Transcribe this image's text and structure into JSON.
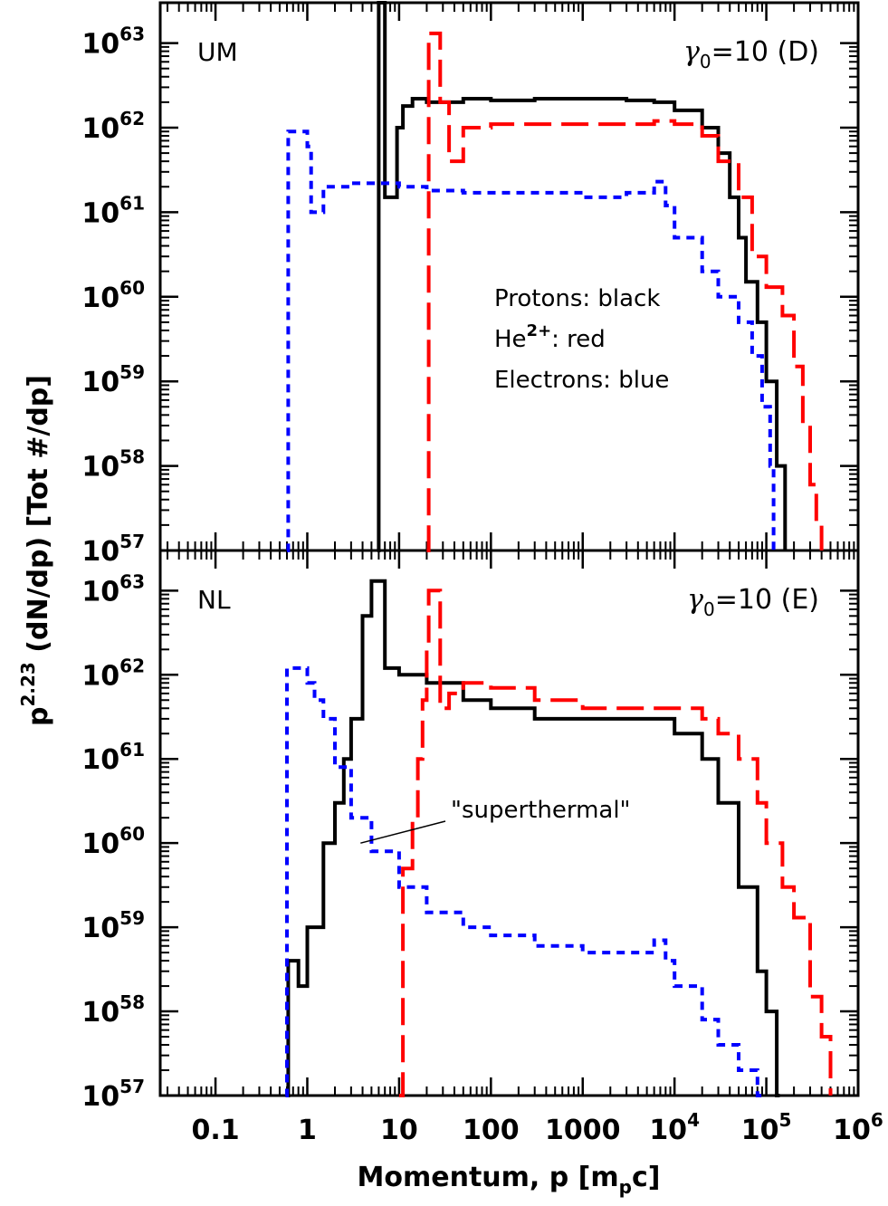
{
  "chart_data": [
    {
      "type": "line",
      "panel_label": "UM",
      "title": "γ0=10 (D)",
      "xlabel": "Momentum, p [mpc]",
      "ylabel": "p2.23 (dN/dp) [Tot #/dp]",
      "xscale": "log",
      "yscale": "log",
      "xlim": [
        0.025,
        1000000
      ],
      "ylim": [
        1e+57,
        3e+63
      ],
      "x_tick_labels": [
        "0.1",
        "1",
        "10",
        "100",
        "1000",
        "10^4",
        "10^5",
        "10^6"
      ],
      "y_tick_labels": [
        "10^57",
        "10^58",
        "10^59",
        "10^60",
        "10^61",
        "10^62",
        "10^63"
      ],
      "legend": [
        "Protons: black",
        "He2+: red",
        "Electrons: blue"
      ],
      "series": [
        {
          "name": "Protons",
          "color": "#000000",
          "style": "solid",
          "x": [
            5.8,
            6.0,
            6.5,
            7.0,
            8.0,
            9.5,
            11,
            14,
            20,
            30,
            50,
            100,
            300,
            1000,
            3000,
            6000,
            10000,
            20000,
            30000,
            40000,
            50000,
            60000,
            80000,
            100000,
            130000,
            160000
          ],
          "y": [
            1e+57,
            3e+63,
            3e+63,
            1.5e+61,
            1.5e+61,
            1e+62,
            1.8e+62,
            2.2e+62,
            2e+62,
            2e+62,
            2.2e+62,
            2.1e+62,
            2.2e+62,
            2.2e+62,
            2.1e+62,
            2e+62,
            1.6e+62,
            1e+62,
            5e+61,
            1.5e+61,
            5e+60,
            1.5e+60,
            5e+59,
            1e+59,
            1e+58,
            1e+57
          ]
        },
        {
          "name": "He2+",
          "color": "#ff0000",
          "style": "dashed",
          "x": [
            20,
            21,
            24,
            28,
            35,
            50,
            100,
            300,
            1000,
            3000,
            6000,
            10000,
            20000,
            30000,
            50000,
            70000,
            100000,
            150000,
            200000,
            250000,
            300000,
            350000,
            400000
          ],
          "y": [
            1e+57,
            1.3e+63,
            1.3e+63,
            2e+62,
            4e+61,
            1e+62,
            1.1e+62,
            1.1e+62,
            1.1e+62,
            1.1e+62,
            1.2e+62,
            1.1e+62,
            8e+61,
            4e+61,
            1.5e+61,
            3e+60,
            1.3e+60,
            6e+59,
            1.5e+59,
            3e+58,
            6e+57,
            2e+57,
            1e+57
          ]
        },
        {
          "name": "Electrons",
          "color": "#0000ff",
          "style": "dotted",
          "x": [
            0.6,
            0.62,
            0.8,
            1.0,
            1.1,
            1.3,
            1.5,
            2,
            3,
            5,
            10,
            20,
            50,
            100,
            300,
            1000,
            3000,
            6000,
            8000,
            10000,
            20000,
            30000,
            50000,
            70000,
            90000,
            110000,
            120000
          ],
          "y": [
            1e+57,
            9e+61,
            9e+61,
            6e+61,
            1e+61,
            1e+61,
            2e+61,
            2e+61,
            2.2e+61,
            2.2e+61,
            2e+61,
            1.8e+61,
            1.7e+61,
            1.7e+61,
            1.7e+61,
            1.5e+61,
            1.7e+61,
            2.3e+61,
            1.2e+61,
            5e+60,
            2e+60,
            1e+60,
            5e+59,
            2e+59,
            5e+58,
            1e+58,
            1e+57
          ]
        }
      ]
    },
    {
      "type": "line",
      "panel_label": "NL",
      "title": "γ0=10 (E)",
      "xlabel": "Momentum, p [mpc]",
      "ylabel": "p2.23 (dN/dp) [Tot #/dp]",
      "xscale": "log",
      "yscale": "log",
      "xlim": [
        0.025,
        1000000
      ],
      "ylim": [
        1e+57,
        3e+63
      ],
      "annotation": {
        "text": "\"superthermal\"",
        "points_to": {
          "x": 3.8,
          "y": 1e+60
        },
        "label_at": {
          "x": 30,
          "y": 3e+60
        }
      },
      "series": [
        {
          "name": "Protons",
          "color": "#000000",
          "style": "solid",
          "x": [
            0.6,
            0.62,
            0.7,
            0.8,
            1.0,
            1.2,
            1.5,
            2,
            2.5,
            3,
            4,
            5,
            6,
            7,
            10,
            20,
            50,
            100,
            300,
            1000,
            3000,
            10000,
            20000,
            30000,
            50000,
            80000,
            100000,
            130000,
            140000
          ],
          "y": [
            1e+57,
            4e+58,
            4e+58,
            2e+58,
            1e+59,
            1e+59,
            1e+60,
            3e+60,
            1e+61,
            3e+61,
            5e+62,
            1.3e+63,
            1.3e+63,
            1.2e+62,
            1e+62,
            8e+61,
            5e+61,
            4e+61,
            3e+61,
            3e+61,
            3e+61,
            2e+61,
            1e+61,
            3e+60,
            3e+59,
            3e+58,
            1e+58,
            1e+57,
            1e+57
          ]
        },
        {
          "name": "He2+",
          "color": "#ff0000",
          "style": "dashed",
          "x": [
            10,
            11,
            12,
            14,
            16,
            18,
            20,
            21,
            24,
            28,
            35,
            50,
            100,
            300,
            1000,
            3000,
            10000,
            20000,
            30000,
            50000,
            80000,
            100000,
            150000,
            200000,
            300000,
            400000,
            500000
          ],
          "y": [
            1e+57,
            5e+59,
            5e+59,
            2e+60,
            1e+61,
            5e+61,
            2e+62,
            1e+63,
            1e+63,
            4e+61,
            6e+61,
            8e+61,
            7e+61,
            5e+61,
            4e+61,
            4e+61,
            4e+61,
            3e+61,
            2e+61,
            1e+61,
            3e+60,
            1e+60,
            3e+59,
            1.3e+59,
            1.5e+58,
            5e+57,
            1e+57
          ]
        },
        {
          "name": "Electrons",
          "color": "#0000ff",
          "style": "dotted",
          "x": [
            0.58,
            0.6,
            0.8,
            1.0,
            1.2,
            1.5,
            2,
            3,
            5,
            10,
            20,
            50,
            100,
            300,
            1000,
            3000,
            6000,
            8000,
            10000,
            20000,
            30000,
            50000,
            80000,
            100000
          ],
          "y": [
            1e+57,
            1.2e+62,
            1.2e+62,
            8e+61,
            5e+61,
            3e+61,
            8e+60,
            2e+60,
            8e+59,
            3e+59,
            1.5e+59,
            1e+59,
            8e+58,
            6e+58,
            5e+58,
            5e+58,
            7e+58,
            4e+58,
            2e+58,
            8e+57,
            4e+57,
            2e+57,
            1e+57,
            1e+57
          ]
        }
      ]
    }
  ]
}
